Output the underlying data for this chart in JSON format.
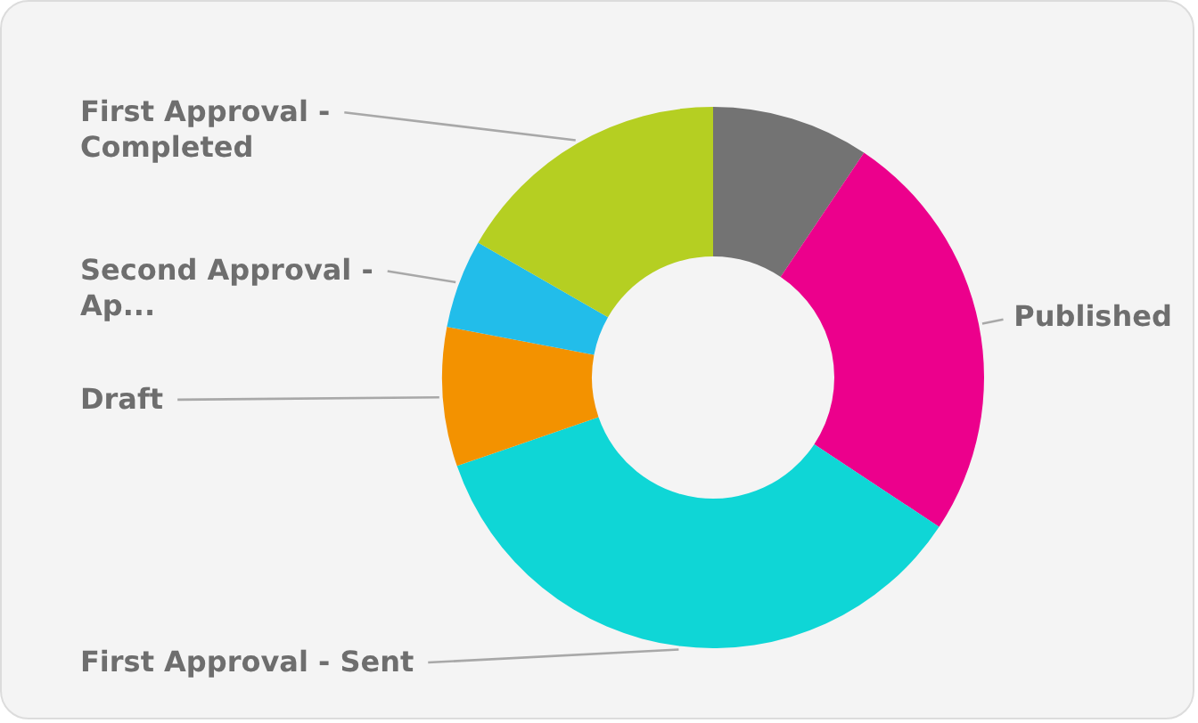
{
  "chart_data": {
    "type": "donut",
    "categories": [
      null,
      "Published",
      "First Approval - Sent",
      "Draft",
      "Second Approval - Ap...",
      "First Approval - Completed"
    ],
    "values": [
      9.4,
      24.9,
      35.4,
      8.3,
      5.3,
      16.7
    ],
    "colors": [
      "#737373",
      "#ec008c",
      "#0fd6d6",
      "#f39200",
      "#22bdea",
      "#b5cf22"
    ]
  }
}
